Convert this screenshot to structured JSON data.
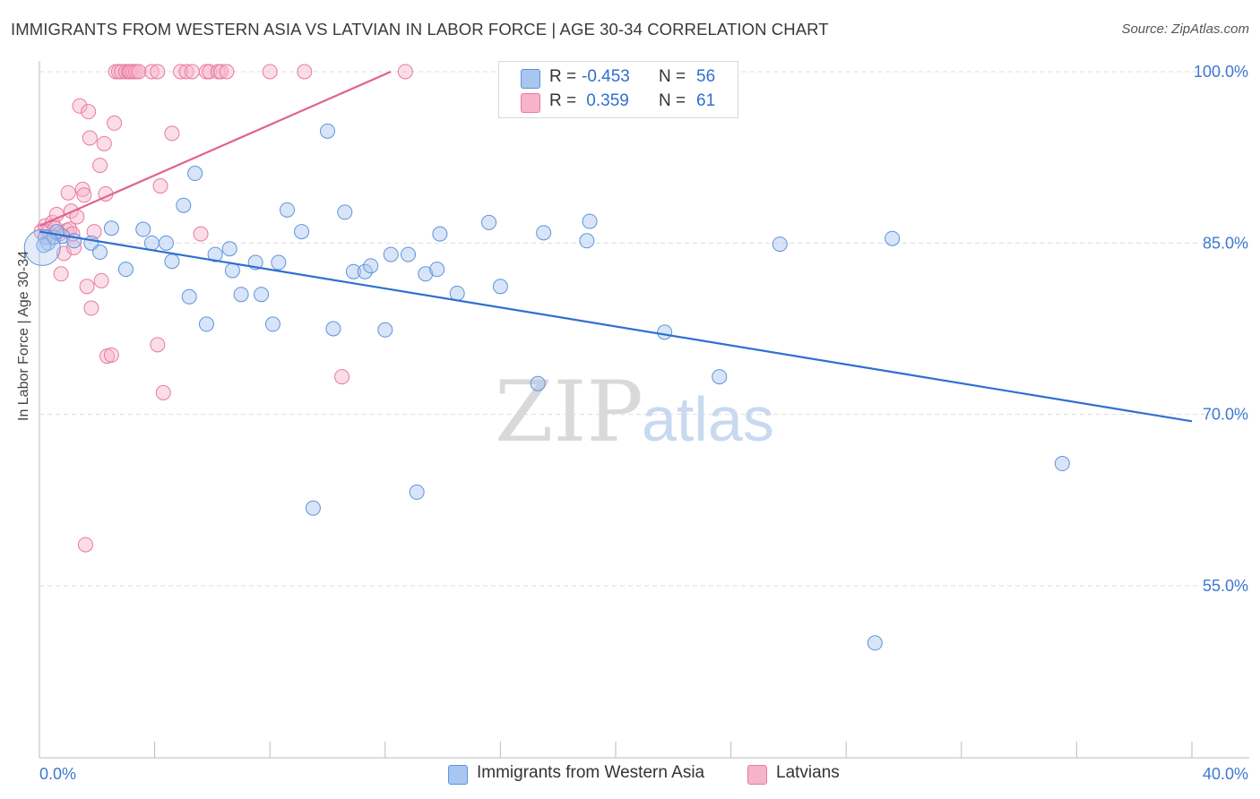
{
  "header": {
    "title": "IMMIGRANTS FROM WESTERN ASIA VS LATVIAN IN LABOR FORCE | AGE 30-34 CORRELATION CHART",
    "source": "Source: ZipAtlas.com"
  },
  "legend_top": {
    "rows": [
      {
        "r_label": "R =",
        "r_value": "-0.453",
        "n_label": "N =",
        "n_value": "56"
      },
      {
        "r_label": "R =",
        "r_value": " 0.359",
        "n_label": "N =",
        "n_value": "61"
      }
    ]
  },
  "legend_bottom": {
    "items": [
      {
        "label": "Immigrants from Western Asia"
      },
      {
        "label": "Latvians"
      }
    ]
  },
  "watermark": {
    "zip": "ZIP",
    "atlas": "atlas"
  },
  "colors": {
    "blue_fill": "#a8c6f0",
    "blue_stroke": "#5f93d8",
    "blue_line": "#2f6fd0",
    "pink_fill": "#f6b3c9",
    "pink_stroke": "#e87aa0",
    "pink_line": "#e0648e",
    "grid": "#dddddd",
    "tick_text": "#3d78d4"
  },
  "chart_data": {
    "type": "scatter",
    "title": "IMMIGRANTS FROM WESTERN ASIA VS LATVIAN IN LABOR FORCE | AGE 30-34 CORRELATION CHART",
    "xlabel": "",
    "ylabel": "In Labor Force | Age 30-34",
    "xlim": [
      0,
      40
    ],
    "ylim": [
      38,
      101.5
    ],
    "x_tick_labels": [
      {
        "value": 0,
        "label": "0.0%"
      },
      {
        "value": 40,
        "label": "40.0%"
      }
    ],
    "y_tick_labels": [
      {
        "value": 100,
        "label": "100.0%"
      },
      {
        "value": 85,
        "label": "85.0%"
      },
      {
        "value": 70,
        "label": "70.0%"
      },
      {
        "value": 55,
        "label": "55.0%"
      }
    ],
    "series": [
      {
        "name": "Immigrants from Western Asia",
        "color": "blue",
        "R": -0.453,
        "N": 56,
        "trend": {
          "x0": 0,
          "y0": 86.0,
          "x1": 40,
          "y1": 69.4
        },
        "points": [
          [
            0.2,
            85.5
          ],
          [
            0.3,
            85.0
          ],
          [
            0.5,
            85.5
          ],
          [
            0.8,
            85.6
          ],
          [
            1.2,
            85.2
          ],
          [
            1.8,
            85.0
          ],
          [
            2.1,
            84.2
          ],
          [
            2.5,
            86.3
          ],
          [
            3.0,
            82.7
          ],
          [
            3.6,
            86.2
          ],
          [
            3.9,
            85.0
          ],
          [
            4.4,
            85.0
          ],
          [
            4.6,
            83.4
          ],
          [
            5.0,
            88.3
          ],
          [
            5.2,
            80.3
          ],
          [
            5.4,
            91.1
          ],
          [
            5.8,
            77.9
          ],
          [
            6.1,
            84.0
          ],
          [
            6.6,
            84.5
          ],
          [
            6.7,
            82.6
          ],
          [
            7.0,
            80.5
          ],
          [
            7.5,
            83.3
          ],
          [
            7.7,
            80.5
          ],
          [
            8.1,
            77.9
          ],
          [
            8.3,
            83.3
          ],
          [
            8.6,
            87.9
          ],
          [
            9.1,
            86.0
          ],
          [
            9.5,
            61.8
          ],
          [
            10.0,
            94.8
          ],
          [
            10.2,
            77.5
          ],
          [
            10.6,
            87.7
          ],
          [
            10.9,
            82.5
          ],
          [
            11.3,
            82.5
          ],
          [
            11.5,
            83.0
          ],
          [
            12.0,
            77.4
          ],
          [
            12.2,
            84.0
          ],
          [
            12.8,
            84.0
          ],
          [
            13.1,
            63.2
          ],
          [
            13.4,
            82.3
          ],
          [
            13.8,
            82.7
          ],
          [
            13.9,
            85.8
          ],
          [
            14.5,
            80.6
          ],
          [
            15.6,
            86.8
          ],
          [
            16.0,
            81.2
          ],
          [
            17.3,
            72.7
          ],
          [
            17.5,
            85.9
          ],
          [
            19.0,
            85.2
          ],
          [
            19.1,
            86.9
          ],
          [
            21.7,
            77.2
          ],
          [
            23.6,
            73.3
          ],
          [
            25.7,
            84.9
          ],
          [
            29.0,
            50.0
          ],
          [
            29.6,
            85.4
          ],
          [
            35.5,
            65.7
          ],
          [
            0.15,
            84.8
          ],
          [
            0.6,
            86.0
          ]
        ]
      },
      {
        "name": "Latvians",
        "color": "pink",
        "R": 0.359,
        "N": 61,
        "trend": {
          "x0": 0,
          "y0": 86.5,
          "x1": 12.2,
          "y1": 100.0
        },
        "points": [
          [
            0.1,
            86.0
          ],
          [
            0.2,
            86.5
          ],
          [
            0.3,
            86.0
          ],
          [
            0.35,
            85.5
          ],
          [
            0.45,
            86.8
          ],
          [
            0.55,
            86.3
          ],
          [
            0.6,
            87.5
          ],
          [
            0.7,
            85.8
          ],
          [
            0.75,
            82.3
          ],
          [
            0.85,
            84.1
          ],
          [
            0.95,
            86.1
          ],
          [
            1.0,
            89.4
          ],
          [
            1.05,
            86.2
          ],
          [
            1.1,
            87.8
          ],
          [
            1.15,
            85.8
          ],
          [
            1.2,
            84.6
          ],
          [
            1.3,
            87.3
          ],
          [
            1.4,
            97.0
          ],
          [
            1.5,
            89.7
          ],
          [
            1.55,
            89.2
          ],
          [
            1.6,
            58.6
          ],
          [
            1.65,
            81.2
          ],
          [
            1.7,
            96.5
          ],
          [
            1.75,
            94.2
          ],
          [
            1.8,
            79.3
          ],
          [
            1.9,
            86.0
          ],
          [
            2.1,
            91.8
          ],
          [
            2.15,
            81.7
          ],
          [
            2.25,
            93.7
          ],
          [
            2.3,
            89.3
          ],
          [
            2.35,
            75.1
          ],
          [
            2.5,
            75.2
          ],
          [
            2.6,
            95.5
          ],
          [
            2.65,
            100.0
          ],
          [
            2.75,
            100.0
          ],
          [
            2.85,
            100.0
          ],
          [
            3.0,
            100.0
          ],
          [
            3.1,
            100.0
          ],
          [
            3.15,
            100.0
          ],
          [
            3.25,
            100.0
          ],
          [
            3.35,
            100.0
          ],
          [
            3.45,
            100.0
          ],
          [
            3.9,
            100.0
          ],
          [
            4.1,
            76.1
          ],
          [
            4.1,
            100.0
          ],
          [
            4.2,
            90.0
          ],
          [
            4.3,
            71.9
          ],
          [
            4.6,
            94.6
          ],
          [
            4.9,
            100.0
          ],
          [
            5.1,
            100.0
          ],
          [
            5.3,
            100.0
          ],
          [
            5.6,
            85.8
          ],
          [
            5.8,
            100.0
          ],
          [
            5.9,
            100.0
          ],
          [
            6.2,
            100.0
          ],
          [
            6.3,
            100.0
          ],
          [
            6.5,
            100.0
          ],
          [
            8.0,
            100.0
          ],
          [
            9.2,
            100.0
          ],
          [
            10.5,
            73.3
          ],
          [
            12.7,
            100.0
          ]
        ]
      }
    ]
  }
}
